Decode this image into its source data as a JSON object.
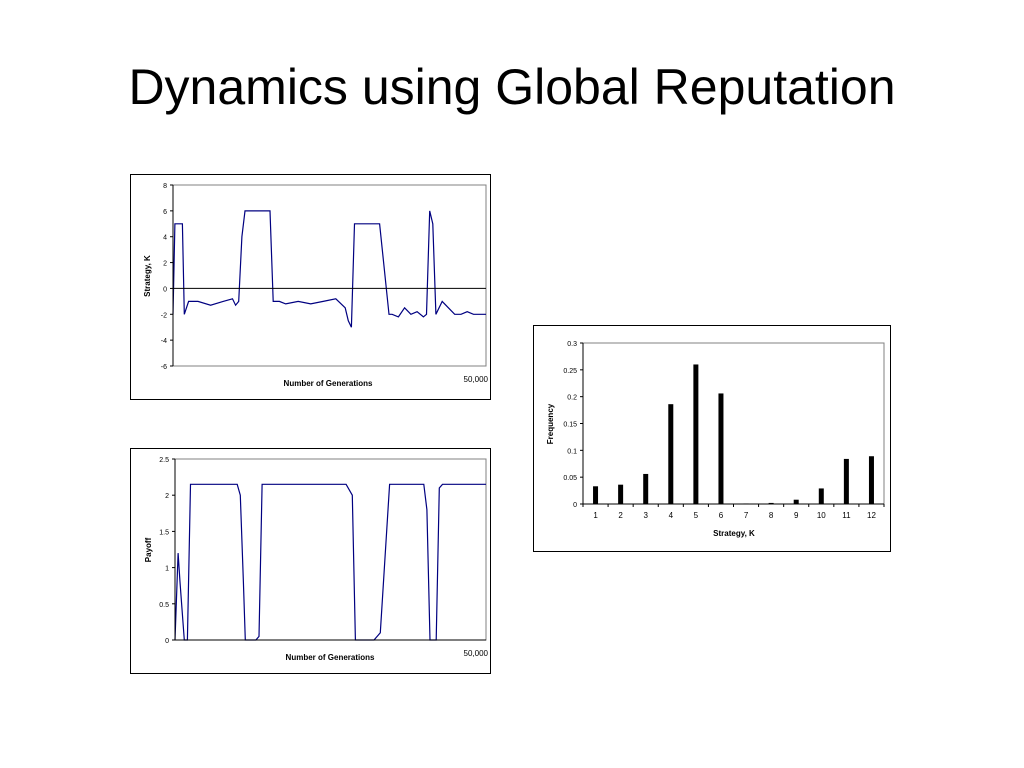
{
  "slide": {
    "title": "Dynamics using Global Reputation"
  },
  "colors": {
    "series": "#000080",
    "bars": "#000000",
    "axes": "#000000"
  },
  "chart_data": [
    {
      "id": "strategy-time-series",
      "type": "line",
      "title": "",
      "xlabel": "Number of Generations",
      "ylabel": "Strategy, K",
      "x_end_label": "50,000",
      "xlim": [
        0,
        50000
      ],
      "ylim": [
        -6,
        8
      ],
      "yticks": [
        "-6",
        "-4",
        "-2",
        "0",
        "2",
        "4",
        "6",
        "8"
      ],
      "grid": false,
      "series": [
        {
          "x": [
            0,
            300,
            600,
            1500,
            1800,
            2500,
            3000,
            4000,
            6000,
            8000,
            9500,
            10000,
            10500,
            11000,
            11500,
            12000,
            13000,
            14000,
            15500,
            16000,
            17000,
            18000,
            20000,
            22000,
            24000,
            26000,
            27500,
            28000,
            28500,
            29000,
            29500,
            30000,
            31000,
            32000,
            33000,
            34500,
            35000,
            36000,
            37000,
            38000,
            39000,
            40000,
            40500,
            41000,
            41500,
            42000,
            43000,
            44000,
            45000,
            46000,
            47000,
            48000,
            49000,
            50000
          ],
          "y": [
            -2,
            5,
            5,
            5,
            -2,
            -1,
            -1,
            -1,
            -1.3,
            -1,
            -0.8,
            -1.3,
            -1,
            4,
            6,
            6,
            6,
            6,
            6,
            -1,
            -1,
            -1.2,
            -1,
            -1.2,
            -1,
            -0.8,
            -1.5,
            -2.5,
            -3,
            5,
            5,
            5,
            5,
            5,
            5,
            -2,
            -2,
            -2.2,
            -1.5,
            -2,
            -1.8,
            -2.2,
            -2,
            6,
            5,
            -2,
            -1,
            -1.5,
            -2,
            -2,
            -1.8,
            -2,
            -2,
            -2
          ]
        }
      ]
    },
    {
      "id": "payoff-time-series",
      "type": "line",
      "title": "",
      "xlabel": "Number of Generations",
      "ylabel": "Payoff",
      "x_end_label": "50,000",
      "xlim": [
        0,
        50000
      ],
      "ylim": [
        0,
        2.5
      ],
      "yticks": [
        "0",
        "0.5",
        "1",
        "1.5",
        "2",
        "2.5"
      ],
      "grid": false,
      "series": [
        {
          "x": [
            0,
            500,
            800,
            1500,
            2000,
            2500,
            3000,
            5000,
            8000,
            10000,
            10500,
            11000,
            11300,
            12000,
            13000,
            13500,
            14000,
            16000,
            20000,
            25000,
            27500,
            28500,
            29000,
            30000,
            31000,
            32000,
            33000,
            34500,
            36000,
            38000,
            40000,
            40500,
            41000,
            41300,
            41500,
            42000,
            42500,
            43000,
            45000,
            47000,
            48000,
            50000
          ],
          "y": [
            0,
            1.2,
            0.8,
            0,
            0,
            2.15,
            2.15,
            2.15,
            2.15,
            2.15,
            2.0,
            0.8,
            0,
            0,
            0,
            0.05,
            2.15,
            2.15,
            2.15,
            2.15,
            2.15,
            2.0,
            0,
            0,
            0,
            0,
            0.1,
            2.15,
            2.15,
            2.15,
            2.15,
            1.8,
            0,
            0,
            0,
            0,
            2.1,
            2.15,
            2.15,
            2.15,
            2.15,
            2.15
          ]
        }
      ]
    },
    {
      "id": "strategy-frequency",
      "type": "bar",
      "title": "",
      "xlabel": "Strategy, K",
      "ylabel": "Frequency",
      "categories": [
        "1",
        "2",
        "3",
        "4",
        "5",
        "6",
        "7",
        "8",
        "9",
        "10",
        "11",
        "12"
      ],
      "values": [
        0.033,
        0.036,
        0.056,
        0.186,
        0.26,
        0.206,
        0.001,
        0.002,
        0.008,
        0.029,
        0.084,
        0.089
      ],
      "ylim": [
        0,
        0.3
      ],
      "yticks": [
        "0",
        "0.05",
        "0.1",
        "0.15",
        "0.2",
        "0.25",
        "0.3"
      ],
      "grid": false
    }
  ]
}
